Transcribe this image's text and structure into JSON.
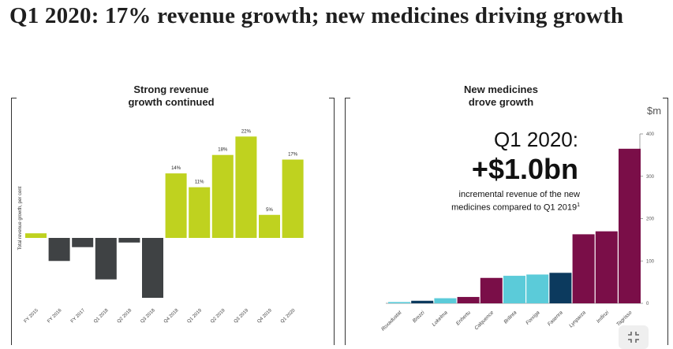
{
  "page": {
    "title": "Q1 2020: 17% revenue growth; new medicines driving growth"
  },
  "left_panel": {
    "title_line1": "Strong revenue",
    "title_line2": "growth continued"
  },
  "right_panel": {
    "title_line1": "New medicines",
    "title_line2": "drove growth",
    "unit": "$m",
    "callout_heading": "Q1 2020:",
    "callout_value": "+$1.0bn",
    "callout_text_line1": "incremental revenue of the new",
    "callout_text_line2": "medicines compared to Q1 2019",
    "callout_footnote": "1"
  },
  "colors": {
    "positive": "#bfd21f",
    "negative": "#3f4244",
    "purple": "#7a0e48",
    "cyan": "#5bcbd9",
    "navy": "#0c3a5e"
  },
  "chart_data": [
    {
      "type": "bar",
      "title": "Strong revenue growth continued",
      "ylabel": "Total revenue growth, per cent",
      "categories": [
        "FY 2015",
        "FY 2016",
        "FY 2017",
        "Q1 2018",
        "Q2 2018",
        "Q3 2018",
        "Q4 2018",
        "Q1 2019",
        "Q2 2019",
        "Q3 2019",
        "Q4 2019",
        "Q1 2020"
      ],
      "values": [
        1,
        -5,
        -2,
        -9,
        -1,
        -13,
        14,
        11,
        18,
        22,
        5,
        17
      ],
      "data_labels": [
        "",
        "",
        "",
        "",
        "",
        "",
        "14%",
        "11%",
        "18%",
        "22%",
        "5%",
        "17%"
      ],
      "ylim": [
        -16,
        24
      ],
      "grid": false
    },
    {
      "type": "bar",
      "title": "New medicines drove growth",
      "ylabel": "$m",
      "categories": [
        "Roxadustat",
        "Brezzi",
        "Lokelma",
        "Enhertu",
        "Calquence",
        "Brilinta",
        "Forxiga",
        "Fasenra",
        "Lynparza",
        "Imfinzi",
        "Tagrisso"
      ],
      "values": [
        3,
        6,
        12,
        15,
        60,
        65,
        68,
        72,
        163,
        170,
        365
      ],
      "colors": [
        "#5bcbd9",
        "#0c3a5e",
        "#5bcbd9",
        "#7a0e48",
        "#7a0e48",
        "#5bcbd9",
        "#5bcbd9",
        "#0c3a5e",
        "#7a0e48",
        "#7a0e48",
        "#7a0e48"
      ],
      "yticks": [
        0,
        100,
        200,
        300,
        400
      ],
      "ylim": [
        0,
        400
      ],
      "grid": false
    }
  ]
}
